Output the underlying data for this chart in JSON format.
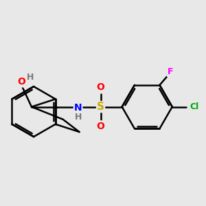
{
  "bg_color": "#e8e8e8",
  "bond_color": "#000000",
  "bond_width": 1.8,
  "atom_colors": {
    "O": "#ff0000",
    "N": "#0000ff",
    "S": "#ccaa00",
    "Cl": "#00aa00",
    "F": "#ff00ff",
    "H": "#777777",
    "C": "#000000"
  },
  "font_size": 9,
  "fig_size": [
    3.0,
    3.0
  ],
  "dpi": 100
}
